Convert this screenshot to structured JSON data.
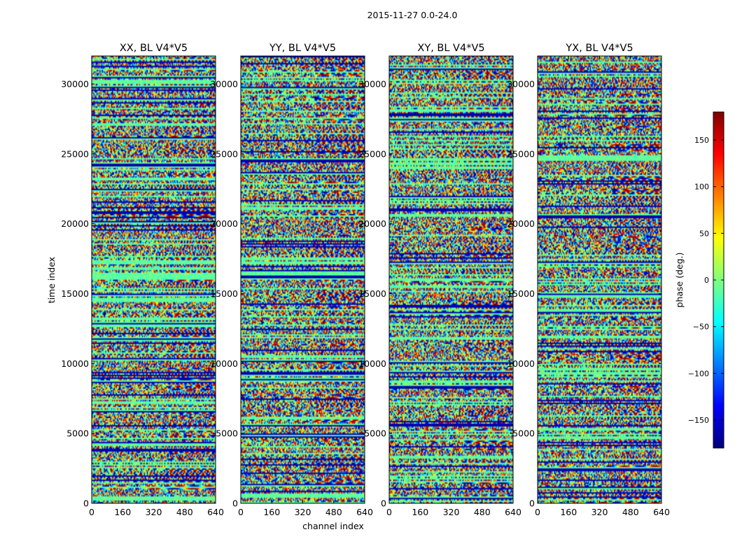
{
  "chart_data": {
    "type": "heatmap",
    "suptitle": "2015-11-27 0.0-24.0",
    "xlabel": "channel index",
    "ylabel": "time index",
    "xlim": [
      0,
      640
    ],
    "ylim": [
      0,
      32000
    ],
    "xticks": [
      "0",
      "160",
      "320",
      "480",
      "640"
    ],
    "yticks": [
      "0",
      "5000",
      "10000",
      "15000",
      "20000",
      "25000",
      "30000"
    ],
    "xtick_values": [
      0,
      160,
      320,
      480,
      640
    ],
    "ytick_values": [
      0,
      5000,
      10000,
      15000,
      20000,
      25000,
      30000
    ],
    "colormap": "jet",
    "panels": [
      {
        "title": "XX, BL V4*V5",
        "polarization": "XX"
      },
      {
        "title": "YY, BL V4*V5",
        "polarization": "YY"
      },
      {
        "title": "XY, BL V4*V5",
        "polarization": "XY"
      },
      {
        "title": "YX, BL V4*V5",
        "polarization": "YX"
      }
    ],
    "colorbar": {
      "label": "phase (deg.)",
      "range": [
        -180,
        180
      ],
      "ticks": [
        "150",
        "100",
        "50",
        "0",
        "−50",
        "−100",
        "−150"
      ],
      "tick_values": [
        150,
        100,
        50,
        0,
        -50,
        -100,
        -150
      ],
      "colors": [
        "#00007f",
        "#0000ff",
        "#007fff",
        "#00ffff",
        "#7fff7f",
        "#ffff00",
        "#ff7f00",
        "#ff0000",
        "#7f0000"
      ]
    }
  }
}
